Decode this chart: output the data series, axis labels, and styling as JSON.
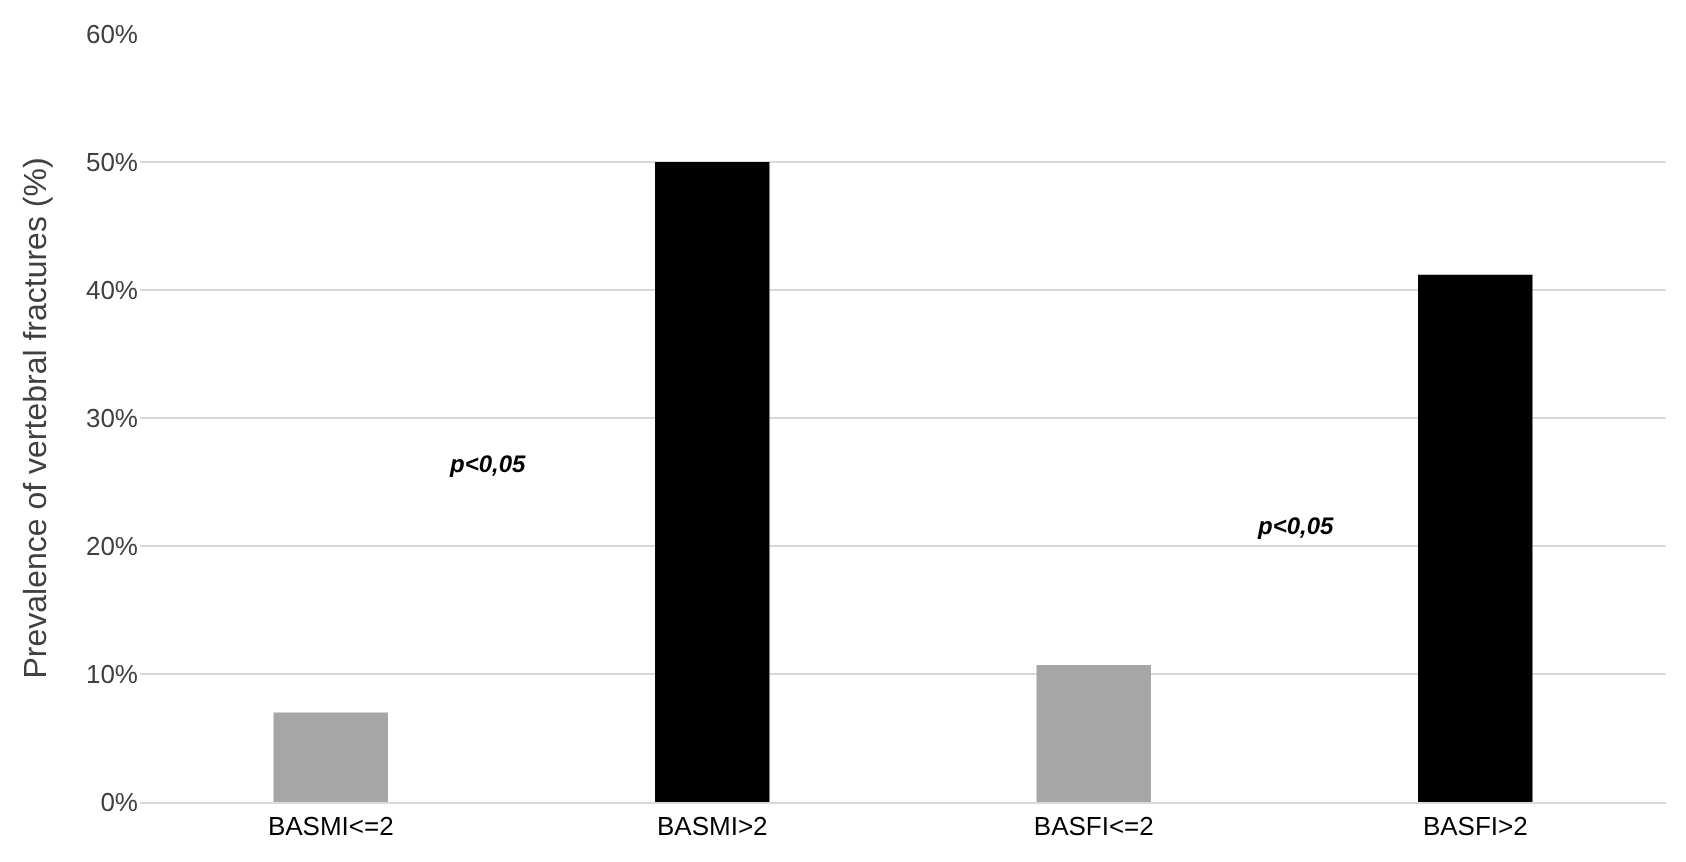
{
  "chart_data": {
    "type": "bar",
    "ylabel": "Prevalence of vertebral fractures (%)",
    "categories": [
      "BASMI<=2",
      "BASMI>2",
      "BASFI<=2",
      "BASFI>2"
    ],
    "values": [
      7.0,
      50.0,
      10.7,
      41.2
    ],
    "colors": [
      "#a6a6a6",
      "#000000",
      "#a6a6a6",
      "#000000"
    ],
    "ylim": [
      0,
      60
    ],
    "yticks": [
      {
        "value": 0,
        "label": "0%"
      },
      {
        "value": 10,
        "label": "10%"
      },
      {
        "value": 20,
        "label": "20%"
      },
      {
        "value": 30,
        "label": "30%"
      },
      {
        "value": 40,
        "label": "40%"
      },
      {
        "value": 50,
        "label": "50%"
      },
      {
        "value": 60,
        "label": "60%"
      }
    ],
    "grid": "y",
    "annotations": [
      "p<0,05",
      "p<0,05"
    ]
  }
}
